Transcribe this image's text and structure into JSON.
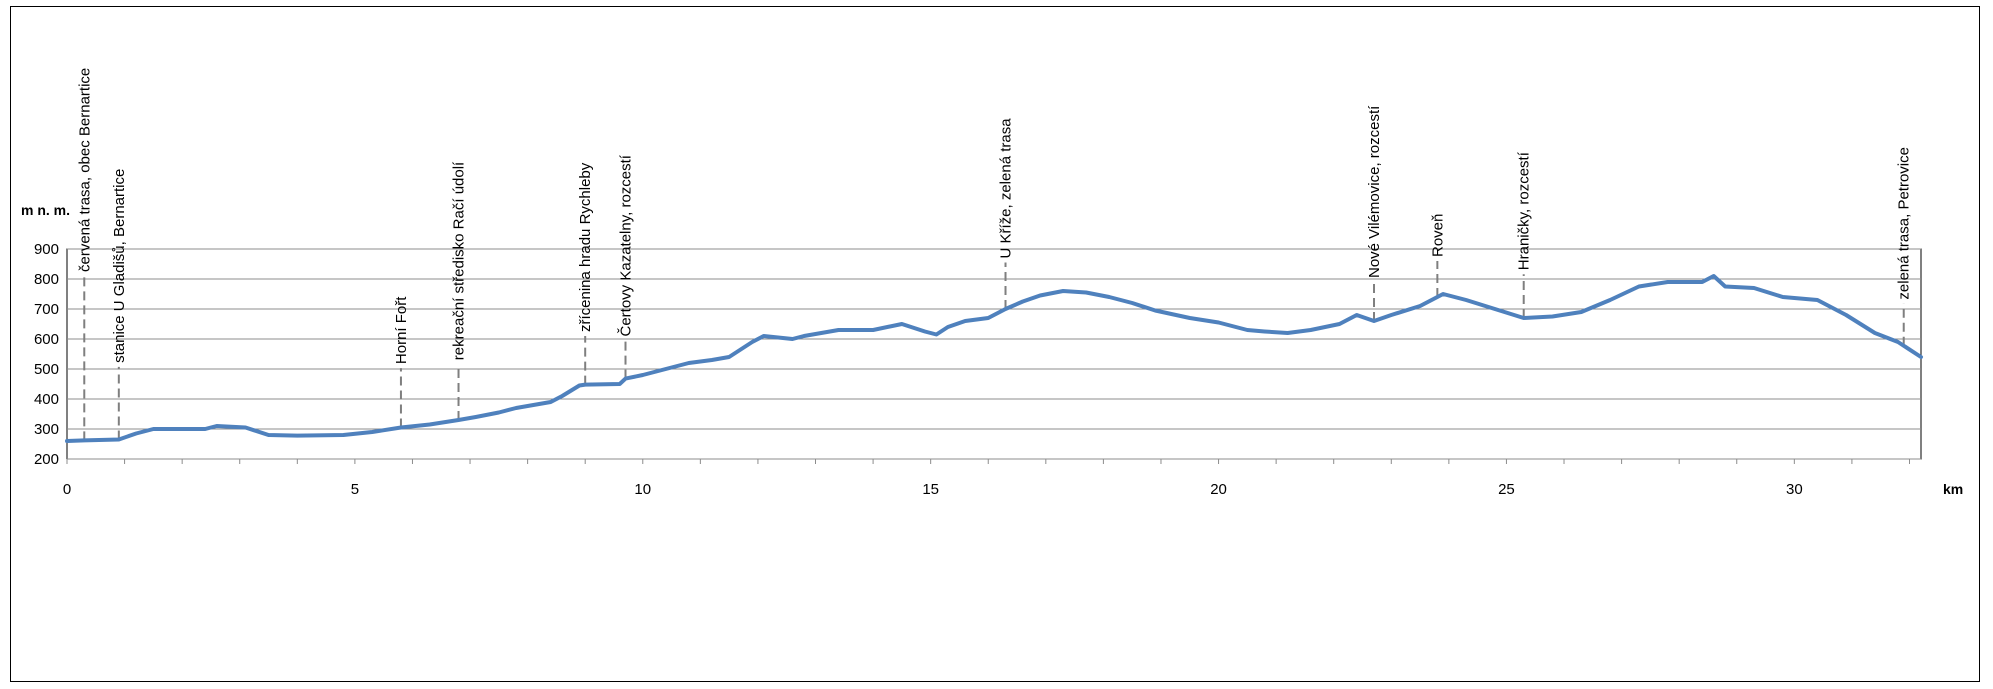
{
  "chart_data": {
    "type": "line",
    "xlabel": "km",
    "ylabel": "m n. m.",
    "xlim": [
      0,
      32.2
    ],
    "ylim": [
      200,
      900
    ],
    "x_ticks": [
      0,
      5,
      10,
      15,
      20,
      25,
      30
    ],
    "y_ticks": [
      200,
      300,
      400,
      500,
      600,
      700,
      800,
      900
    ],
    "grid": "horizontal",
    "line_color": "#4F81BD",
    "marker_line_color": "#7F7F7F",
    "series": [
      {
        "x": [
          0,
          0.3,
          0.9,
          1.2,
          1.5,
          2.0,
          2.4,
          2.6,
          3.1,
          3.5,
          4.0,
          4.8,
          5.3,
          5.8,
          6.3,
          6.8,
          7.1,
          7.5,
          7.8,
          8.4,
          8.6,
          8.9,
          9.0,
          9.6,
          9.7,
          10.0,
          10.4,
          10.8,
          11.2,
          11.5,
          11.9,
          12.1,
          12.6,
          12.8,
          13.4,
          14.0,
          14.5,
          14.9,
          15.1,
          15.3,
          15.6,
          16.0,
          16.3,
          16.6,
          16.9,
          17.3,
          17.7,
          18.1,
          18.5,
          18.9,
          19.5,
          20.0,
          20.5,
          20.8,
          21.2,
          21.6,
          22.1,
          22.4,
          22.7,
          23.0,
          23.5,
          23.9,
          24.3,
          24.8,
          25.3,
          25.8,
          26.3,
          26.8,
          27.3,
          27.8,
          28.4,
          28.6,
          28.8,
          29.3,
          29.8,
          30.4,
          30.9,
          31.4,
          31.8,
          32.2
        ],
        "y": [
          260,
          262,
          265,
          285,
          300,
          300,
          300,
          310,
          305,
          280,
          278,
          280,
          290,
          305,
          315,
          330,
          340,
          355,
          370,
          390,
          410,
          445,
          448,
          450,
          468,
          480,
          500,
          520,
          530,
          540,
          590,
          610,
          600,
          610,
          630,
          630,
          650,
          625,
          615,
          640,
          660,
          670,
          700,
          725,
          745,
          760,
          755,
          740,
          720,
          695,
          670,
          655,
          630,
          625,
          620,
          630,
          650,
          680,
          660,
          680,
          710,
          750,
          730,
          700,
          670,
          675,
          690,
          730,
          775,
          790,
          790,
          810,
          775,
          770,
          740,
          730,
          680,
          620,
          590,
          540
        ]
      }
    ],
    "annotations": [
      {
        "x": 0.3,
        "label": "červená trasa, obec Bernartice",
        "y_top": 810
      },
      {
        "x": 0.9,
        "label": "stanice U Gladišů, Bernartice",
        "y_top": 507
      },
      {
        "x": 5.8,
        "label": "Horní Fořt",
        "y_top": 503
      },
      {
        "x": 6.8,
        "label": "rekreační středisko Račí údolí",
        "y_top": 516
      },
      {
        "x": 9.0,
        "label": "zřícenina hradu Rychleby",
        "y_top": 610
      },
      {
        "x": 9.7,
        "label": "Čertovy Kazatelny, rozcestí",
        "y_top": 595
      },
      {
        "x": 16.3,
        "label": "U Kříže, zelená trasa",
        "y_top": 855
      },
      {
        "x": 22.7,
        "label": "Nové Vilémovice, rozcestí",
        "y_top": 790
      },
      {
        "x": 23.8,
        "label": "Roveň",
        "y_top": 860
      },
      {
        "x": 25.3,
        "label": "Hraničky, rozcestí",
        "y_top": 816
      },
      {
        "x": 31.9,
        "label": "zelená trasa, Petrovice",
        "y_top": 718
      }
    ]
  }
}
